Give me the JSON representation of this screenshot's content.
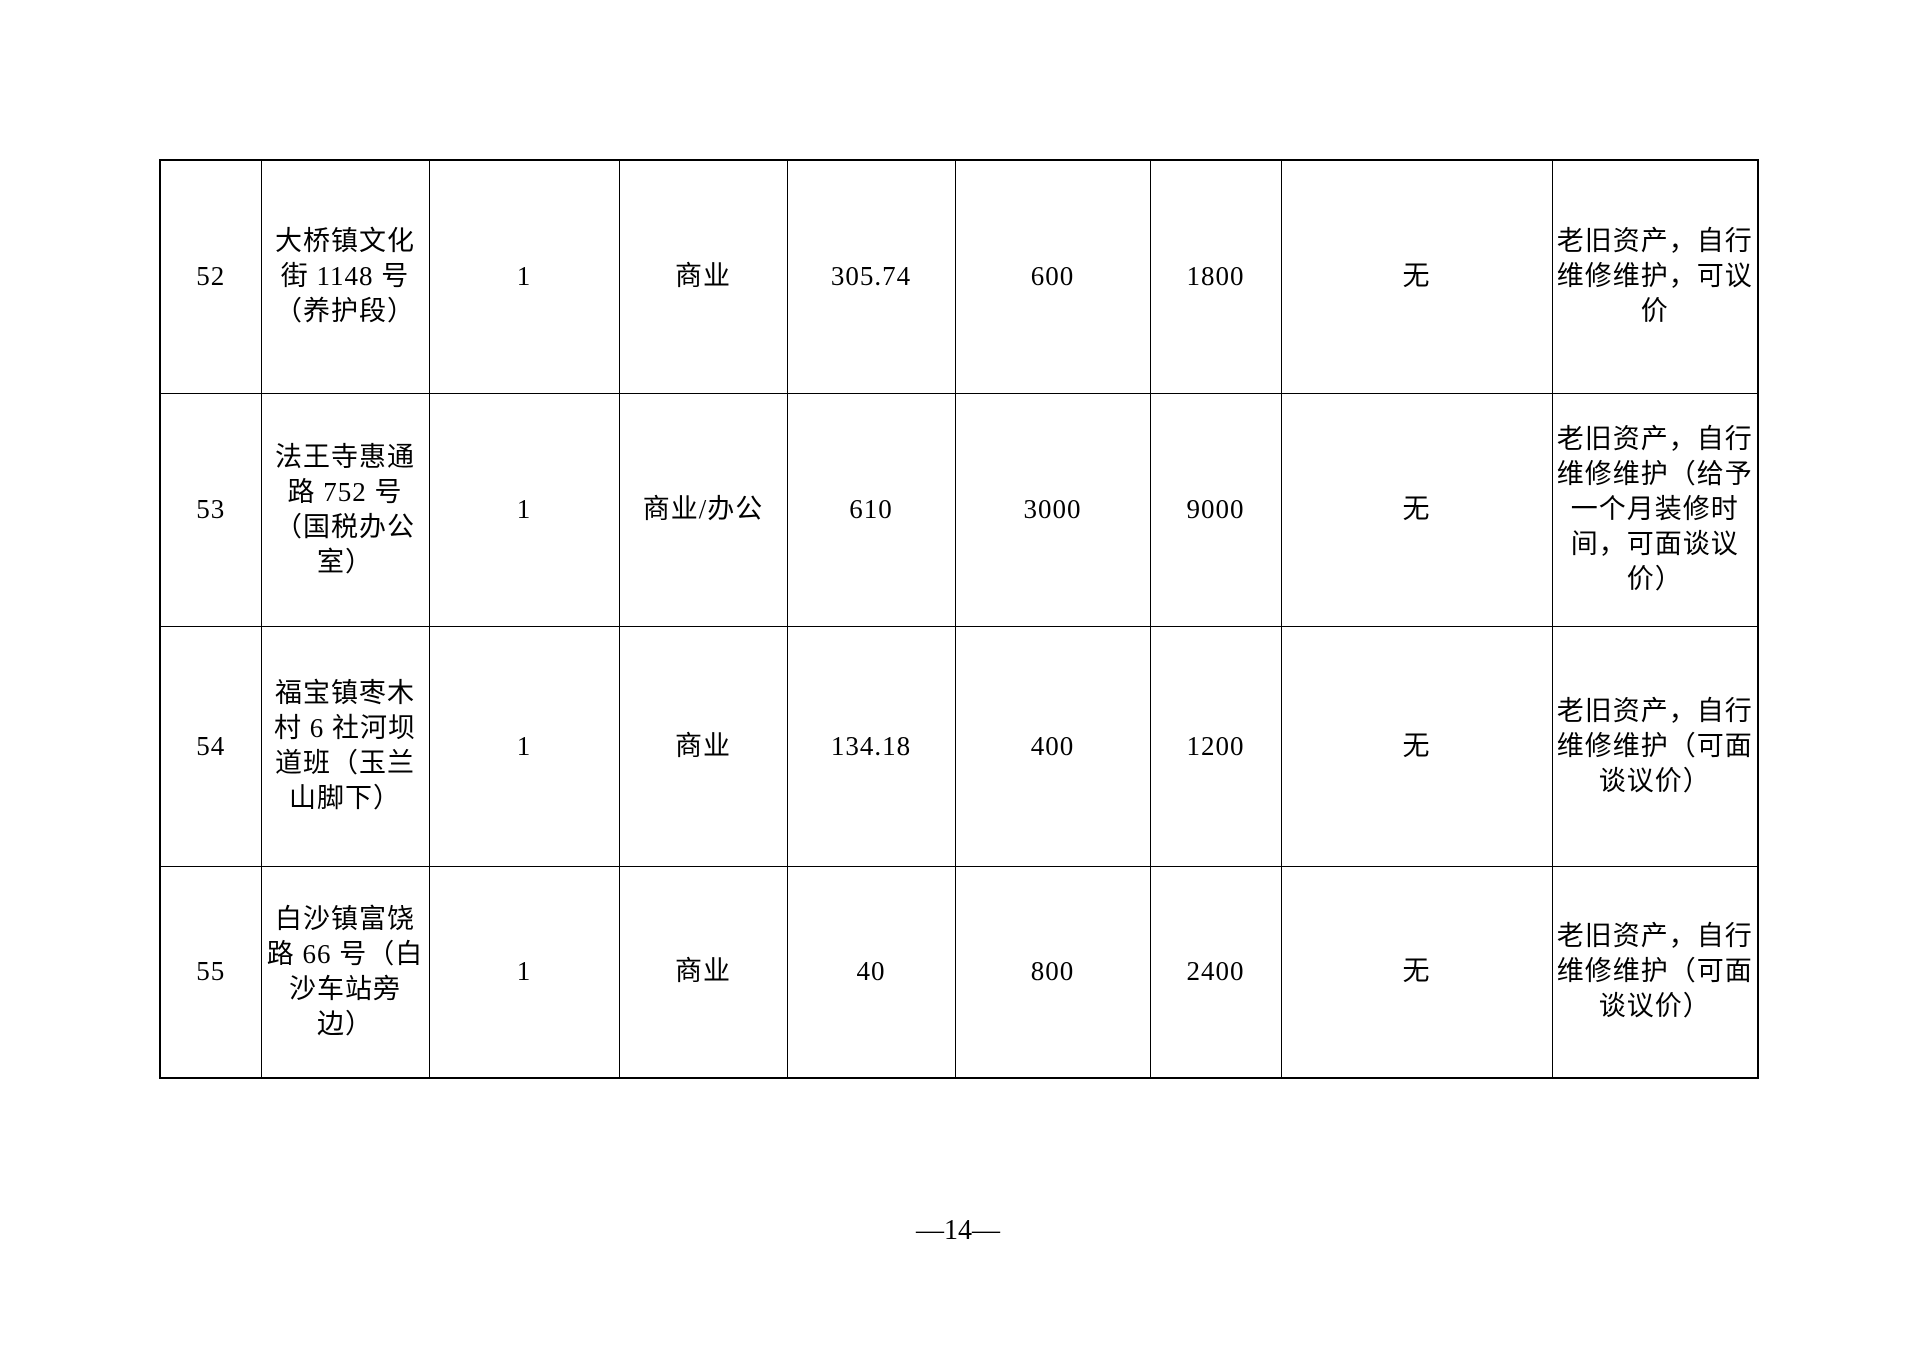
{
  "page": {
    "number_label": "—14—"
  },
  "table": {
    "rows": [
      {
        "seq": "52",
        "address": [
          "大桥镇文化",
          "街 1148 号",
          "（养护段）"
        ],
        "quantity": "1",
        "use_type": "商业",
        "area": "305.74",
        "monthly_price": "600",
        "annual_price": "1800",
        "restriction": "无",
        "notes": [
          "老旧资产，自行",
          "维修维护，可议",
          "价"
        ]
      },
      {
        "seq": "53",
        "address": [
          "法王寺惠通",
          "路 752 号",
          "（国税办公",
          "室）"
        ],
        "quantity": "1",
        "use_type": "商业/办公",
        "area": "610",
        "monthly_price": "3000",
        "annual_price": "9000",
        "restriction": "无",
        "notes": [
          "老旧资产，自行",
          "维修维护（给予",
          "一个月装修时",
          "间，可面谈议",
          "价）"
        ]
      },
      {
        "seq": "54",
        "address": [
          "福宝镇枣木",
          "村 6 社河坝",
          "道班（玉兰",
          "山脚下）"
        ],
        "quantity": "1",
        "use_type": "商业",
        "area": "134.18",
        "monthly_price": "400",
        "annual_price": "1200",
        "restriction": "无",
        "notes": [
          "老旧资产，自行",
          "维修维护（可面",
          "谈议价）"
        ]
      },
      {
        "seq": "55",
        "address": [
          "白沙镇富饶",
          "路 66 号（白",
          "沙车站旁",
          "边）"
        ],
        "quantity": "1",
        "use_type": "商业",
        "area": "40",
        "monthly_price": "800",
        "annual_price": "2400",
        "restriction": "无",
        "notes": [
          "老旧资产，自行",
          "维修维护（可面",
          "谈议价）"
        ]
      }
    ]
  }
}
